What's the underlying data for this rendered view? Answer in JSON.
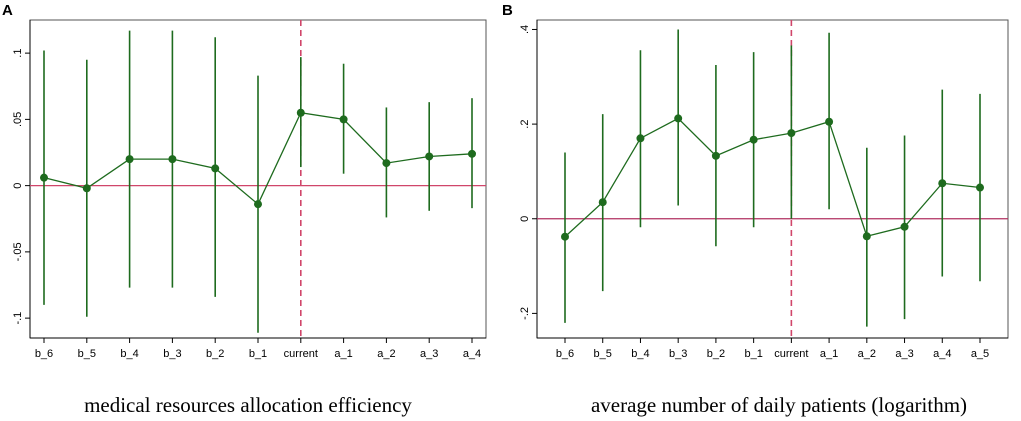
{
  "chart_data": [
    {
      "type": "line",
      "panel": "A",
      "xlabel": "medical resources allocation efficiency",
      "ylabel": "",
      "categories": [
        "b_6",
        "b_5",
        "b_4",
        "b_3",
        "b_2",
        "b_1",
        "current",
        "a_1",
        "a_2",
        "a_3",
        "a_4"
      ],
      "values": [
        0.006,
        -0.002,
        0.02,
        0.02,
        0.013,
        -0.014,
        0.055,
        0.05,
        0.017,
        0.022,
        0.024
      ],
      "ci_low": [
        -0.09,
        -0.099,
        -0.077,
        -0.077,
        -0.084,
        -0.111,
        0.014,
        0.009,
        -0.024,
        -0.019,
        -0.017
      ],
      "ci_high": [
        0.102,
        0.095,
        0.117,
        0.117,
        0.112,
        0.083,
        0.097,
        0.092,
        0.059,
        0.063,
        0.066
      ],
      "yticks": [
        -0.1,
        -0.05,
        0,
        0.05,
        0.1
      ],
      "ytick_labels": [
        "-.1",
        "-.05",
        "0",
        ".05",
        ".1"
      ],
      "ylim": [
        -0.115,
        0.125
      ],
      "reference_line_y": 0,
      "event_line_category": "current",
      "colors": {
        "series": "#1e6b1e",
        "zero_line": "#d0466a",
        "event_line": "#d0466a"
      }
    },
    {
      "type": "line",
      "panel": "B",
      "xlabel": "average number of daily patients (logarithm)",
      "ylabel": "",
      "categories": [
        "b_6",
        "b_5",
        "b_4",
        "b_3",
        "b_2",
        "b_1",
        "current",
        "a_1",
        "a_2",
        "a_3",
        "a_4",
        "a_5"
      ],
      "values": [
        -0.038,
        0.035,
        0.17,
        0.212,
        0.133,
        0.167,
        0.181,
        0.205,
        -0.037,
        -0.017,
        0.075,
        0.066
      ],
      "ci_low": [
        -0.22,
        -0.153,
        -0.018,
        0.028,
        -0.058,
        -0.018,
        0.0,
        0.02,
        -0.228,
        -0.212,
        -0.122,
        -0.132
      ],
      "ci_high": [
        0.14,
        0.221,
        0.356,
        0.4,
        0.325,
        0.352,
        0.366,
        0.393,
        0.15,
        0.176,
        0.273,
        0.264
      ],
      "yticks": [
        -0.2,
        0,
        0.2,
        0.4
      ],
      "ytick_labels": [
        "-.2",
        "0",
        ".2",
        ".4"
      ],
      "ylim": [
        -0.252,
        0.42
      ],
      "reference_line_y": 0,
      "event_line_category": "current",
      "colors": {
        "series": "#1e6b1e",
        "zero_line": "#b03060",
        "event_line": "#d0466a"
      }
    }
  ]
}
